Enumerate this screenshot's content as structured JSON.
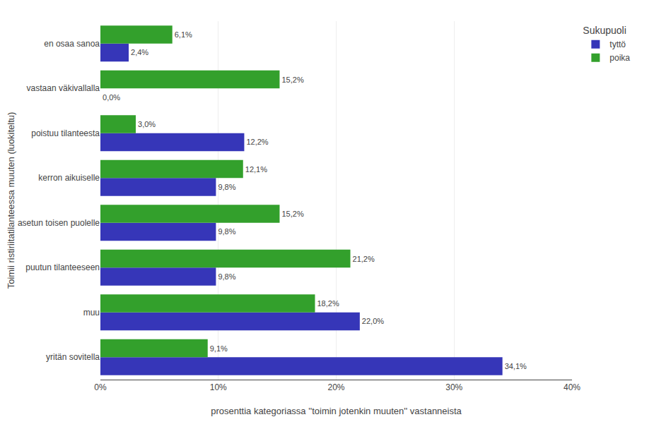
{
  "chart_data": {
    "type": "bar",
    "orientation": "horizontal",
    "categories": [
      "yritän sovitella",
      "muu",
      "puutun tilanteeseen",
      "asetun toisen puolelle",
      "kerron aikuiselle",
      "poistuu tilanteesta",
      "vastaan väkivallalla",
      "en osaa sanoa"
    ],
    "series": [
      {
        "name": "tyttö",
        "color": "#3636b8",
        "values": [
          34.1,
          22.0,
          9.8,
          9.8,
          9.8,
          12.2,
          0.0,
          2.4
        ],
        "value_labels": [
          "34,1%",
          "22,0%",
          "9,8%",
          "9,8%",
          "9,8%",
          "12,2%",
          "0,0%",
          "2,4%"
        ]
      },
      {
        "name": "poika",
        "color": "#33a02c",
        "values": [
          9.1,
          18.2,
          21.2,
          15.2,
          12.1,
          3.0,
          15.2,
          6.1
        ],
        "value_labels": [
          "9,1%",
          "18,2%",
          "21,2%",
          "15,2%",
          "12,1%",
          "3,0%",
          "15,2%",
          "6,1%"
        ]
      }
    ],
    "xlabel": "prosenttia kategoriassa ''toimin jotenkin muuten'' vastanneista",
    "ylabel": "Toimii ristiriitatilanteessa muuten (luokiteltu)",
    "legend_title": "Sukupuoli",
    "legend": "right",
    "xlim": [
      0,
      40
    ],
    "xticks": [
      {
        "value": 0,
        "label": "0%"
      },
      {
        "value": 10,
        "label": "10%"
      },
      {
        "value": 20,
        "label": "20%"
      },
      {
        "value": 30,
        "label": "30%"
      },
      {
        "value": 40,
        "label": "40%"
      }
    ],
    "grid": true,
    "data_labels": true
  }
}
